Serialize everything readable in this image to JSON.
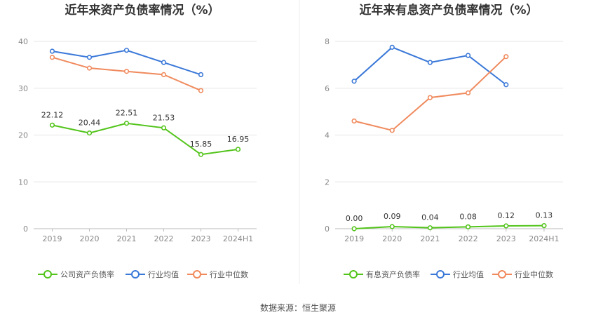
{
  "source": "数据来源：恒生聚源",
  "chart_data": [
    {
      "type": "line",
      "title": "近年来资产负债率情况（%）",
      "categories": [
        "2019",
        "2020",
        "2021",
        "2022",
        "2023",
        "2024H1"
      ],
      "ylim": [
        0,
        40
      ],
      "yticks": [
        "0",
        "10",
        "20",
        "30",
        "40"
      ],
      "grid": true,
      "legend_position": "bottom",
      "series": [
        {
          "name": "公司资产负债率",
          "color": "#52c41a",
          "values": [
            22.12,
            20.44,
            22.51,
            21.53,
            15.85,
            16.95
          ],
          "labels": [
            "22.12",
            "20.44",
            "22.51",
            "21.53",
            "15.85",
            "16.95"
          ]
        },
        {
          "name": "行业均值",
          "color": "#3a78d8",
          "values": [
            37.9,
            36.6,
            38.1,
            35.5,
            32.9,
            null
          ]
        },
        {
          "name": "行业中位数",
          "color": "#f08a5d",
          "values": [
            36.6,
            34.3,
            33.6,
            32.9,
            29.5,
            null
          ]
        }
      ]
    },
    {
      "type": "line",
      "title": "近年来有息资产负债率情况（%）",
      "categories": [
        "2019",
        "2020",
        "2021",
        "2022",
        "2023",
        "2024H1"
      ],
      "ylim": [
        0,
        8
      ],
      "yticks": [
        "0",
        "2",
        "4",
        "6",
        "8"
      ],
      "grid": true,
      "legend_position": "bottom",
      "series": [
        {
          "name": "有息资产负债率",
          "color": "#52c41a",
          "values": [
            0.0,
            0.09,
            0.04,
            0.08,
            0.12,
            0.13
          ],
          "labels": [
            "0.00",
            "0.09",
            "0.04",
            "0.08",
            "0.12",
            "0.13"
          ]
        },
        {
          "name": "行业均值",
          "color": "#3a78d8",
          "values": [
            6.3,
            7.75,
            7.1,
            7.4,
            6.15,
            null
          ]
        },
        {
          "name": "行业中位数",
          "color": "#f08a5d",
          "values": [
            4.6,
            4.2,
            5.6,
            5.8,
            7.35,
            null
          ]
        }
      ]
    }
  ]
}
